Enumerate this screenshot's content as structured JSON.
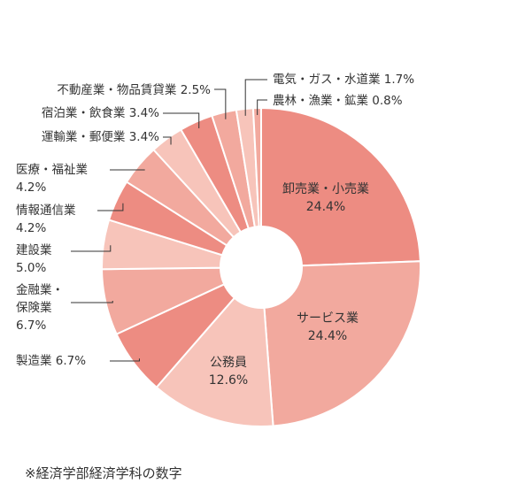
{
  "chart_data": {
    "type": "donut",
    "categories": [
      "卸売業・小売業",
      "サービス業",
      "公務員",
      "製造業",
      "金融業・保険業",
      "建設業",
      "情報通信業",
      "医療・福祉業",
      "運輸業・郵便業",
      "宿泊業・飲食業",
      "不動産業・物品賃貸業",
      "電気・ガス・水道業",
      "農林・漁業・鉱業"
    ],
    "values": [
      24.4,
      24.4,
      12.6,
      6.7,
      6.7,
      5.0,
      4.2,
      4.2,
      3.4,
      3.4,
      2.5,
      1.7,
      0.8
    ],
    "value_labels": [
      "24.4%",
      "24.4%",
      "12.6%",
      "6.7%",
      "6.7%",
      "5.0%",
      "4.2%",
      "4.2%",
      "3.4%",
      "3.4%",
      "2.5%",
      "1.7%",
      "0.8%"
    ],
    "colors": [
      "#ed8c82",
      "#f2a99e",
      "#f7c4ba",
      "#ed8c82",
      "#f2a99e",
      "#f7c4ba",
      "#ed8c82",
      "#f2a99e",
      "#f7c4ba",
      "#ed8c82",
      "#f2a99e",
      "#f7c4ba",
      "#f2a99e"
    ],
    "footnote": "※経済学部経済学科の数字"
  }
}
